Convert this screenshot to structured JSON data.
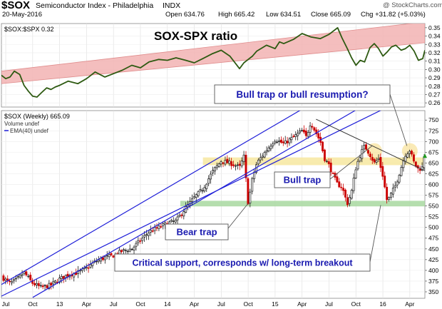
{
  "header": {
    "symbol": "$SOX",
    "name": "Semiconductor Index - Philadelphia",
    "exchange": "INDX",
    "date": "20-May-2016",
    "open": "Open 634.76",
    "high": "High 665.42",
    "low": "Low 634.51",
    "close": "Close 665.09",
    "change": "Chg +31.82 (+5.03%)",
    "watermark": "@ StockCharts.com"
  },
  "colors": {
    "price": "#000000",
    "up_bar": "#1a1a1a",
    "down_bar": "#cc0000",
    "ratio_line": "#2e5a12",
    "channel_fill": "#f2b3b3",
    "blue_line": "#1f1fd8",
    "yellow_zone": "#f7e7a0",
    "green_zone": "#a8d8a0",
    "trend_line": "#333333",
    "circle": "#f5d97a",
    "annotation_text": "#1a1ab0",
    "up_marker": "#1e9a1e"
  },
  "chart_data": [
    {
      "type": "line",
      "legend": "$SOX:$SPX 0.32",
      "title": "SOX-SPX ratio",
      "ylim": [
        0.255,
        0.355
      ],
      "yticks": [
        "0.35",
        "0.34",
        "0.33",
        "0.32",
        "0.31",
        "0.30",
        "0.29",
        "0.28",
        "0.27",
        "0.26"
      ],
      "xlim": [
        2012.46,
        2016.39
      ],
      "x": [
        2012.46,
        2012.5,
        2012.54,
        2012.58,
        2012.63,
        2012.67,
        2012.71,
        2012.75,
        2012.79,
        2012.83,
        2012.88,
        2012.92,
        2012.96,
        2013.0,
        2013.08,
        2013.17,
        2013.25,
        2013.33,
        2013.42,
        2013.5,
        2013.58,
        2013.67,
        2013.75,
        2013.83,
        2013.92,
        2014.0,
        2014.08,
        2014.17,
        2014.25,
        2014.33,
        2014.42,
        2014.5,
        2014.58,
        2014.67,
        2014.71,
        2014.75,
        2014.79,
        2014.83,
        2014.92,
        2015.0,
        2015.04,
        2015.08,
        2015.17,
        2015.25,
        2015.33,
        2015.42,
        2015.5,
        2015.58,
        2015.62,
        2015.67,
        2015.71,
        2015.75,
        2015.79,
        2015.83,
        2015.88,
        2015.92,
        2015.96,
        2016.0,
        2016.04,
        2016.08,
        2016.12,
        2016.17,
        2016.21,
        2016.25,
        2016.29,
        2016.33,
        2016.37,
        2016.39
      ],
      "values": [
        0.293,
        0.289,
        0.291,
        0.298,
        0.294,
        0.281,
        0.274,
        0.268,
        0.267,
        0.272,
        0.278,
        0.276,
        0.279,
        0.281,
        0.286,
        0.283,
        0.289,
        0.297,
        0.291,
        0.295,
        0.299,
        0.305,
        0.302,
        0.309,
        0.312,
        0.311,
        0.314,
        0.311,
        0.308,
        0.313,
        0.319,
        0.323,
        0.316,
        0.301,
        0.308,
        0.312,
        0.316,
        0.322,
        0.329,
        0.325,
        0.333,
        0.331,
        0.336,
        0.343,
        0.339,
        0.337,
        0.342,
        0.35,
        0.338,
        0.325,
        0.314,
        0.305,
        0.311,
        0.309,
        0.326,
        0.331,
        0.325,
        0.316,
        0.321,
        0.327,
        0.329,
        0.323,
        0.325,
        0.329,
        0.322,
        0.311,
        0.313,
        0.323
      ],
      "channel": {
        "lower": [
          [
            2012.46,
            0.283
          ],
          [
            2016.39,
            0.332
          ]
        ],
        "upper": [
          [
            2012.46,
            0.298
          ],
          [
            2016.39,
            0.357
          ]
        ]
      }
    },
    {
      "type": "candlestick",
      "legend": [
        "$SOX (Weekly) 665.09",
        "Volume undef",
        "EMA(40) undef"
      ],
      "ylim": [
        335,
        772
      ],
      "yticks": [
        "750",
        "725",
        "700",
        "675",
        "650",
        "625",
        "600",
        "575",
        "550",
        "525",
        "500",
        "475",
        "450",
        "425",
        "400",
        "375",
        "350"
      ],
      "xlim": [
        2012.46,
        2016.39
      ],
      "xticks": [
        {
          "x": 2012.5,
          "label": "Jul"
        },
        {
          "x": 2012.75,
          "label": "Oct"
        },
        {
          "x": 2013.0,
          "label": "13"
        },
        {
          "x": 2013.25,
          "label": "Apr"
        },
        {
          "x": 2013.5,
          "label": "Jul"
        },
        {
          "x": 2013.75,
          "label": "Oct"
        },
        {
          "x": 2014.0,
          "label": "14"
        },
        {
          "x": 2014.25,
          "label": "Apr"
        },
        {
          "x": 2014.5,
          "label": "Jul"
        },
        {
          "x": 2014.75,
          "label": "Oct"
        },
        {
          "x": 2015.0,
          "label": "15"
        },
        {
          "x": 2015.25,
          "label": "Apr"
        },
        {
          "x": 2015.5,
          "label": "Jul"
        },
        {
          "x": 2015.75,
          "label": "Oct"
        },
        {
          "x": 2016.0,
          "label": "16"
        },
        {
          "x": 2016.25,
          "label": "Apr"
        }
      ],
      "anchors": [
        [
          2012.46,
          385
        ],
        [
          2012.54,
          370
        ],
        [
          2012.6,
          378
        ],
        [
          2012.67,
          395
        ],
        [
          2012.75,
          370
        ],
        [
          2012.83,
          360
        ],
        [
          2012.92,
          366
        ],
        [
          2013.0,
          380
        ],
        [
          2013.08,
          390
        ],
        [
          2013.17,
          395
        ],
        [
          2013.25,
          405
        ],
        [
          2013.33,
          420
        ],
        [
          2013.42,
          430
        ],
        [
          2013.5,
          435
        ],
        [
          2013.58,
          445
        ],
        [
          2013.67,
          450
        ],
        [
          2013.75,
          470
        ],
        [
          2013.83,
          490
        ],
        [
          2013.92,
          500
        ],
        [
          2014.0,
          510
        ],
        [
          2014.08,
          515
        ],
        [
          2014.17,
          545
        ],
        [
          2014.25,
          570
        ],
        [
          2014.33,
          590
        ],
        [
          2014.42,
          630
        ],
        [
          2014.5,
          655
        ],
        [
          2014.58,
          650
        ],
        [
          2014.67,
          640
        ],
        [
          2014.71,
          665
        ],
        [
          2014.75,
          555
        ],
        [
          2014.79,
          615
        ],
        [
          2014.83,
          650
        ],
        [
          2014.92,
          680
        ],
        [
          2015.0,
          705
        ],
        [
          2015.08,
          695
        ],
        [
          2015.17,
          710
        ],
        [
          2015.25,
          725
        ],
        [
          2015.29,
          710
        ],
        [
          2015.33,
          745
        ],
        [
          2015.38,
          720
        ],
        [
          2015.42,
          700
        ],
        [
          2015.46,
          660
        ],
        [
          2015.5,
          645
        ],
        [
          2015.54,
          620
        ],
        [
          2015.58,
          600
        ],
        [
          2015.62,
          595
        ],
        [
          2015.67,
          555
        ],
        [
          2015.71,
          585
        ],
        [
          2015.75,
          640
        ],
        [
          2015.79,
          670
        ],
        [
          2015.83,
          690
        ],
        [
          2015.88,
          670
        ],
        [
          2015.92,
          650
        ],
        [
          2015.96,
          660
        ],
        [
          2016.0,
          620
        ],
        [
          2016.04,
          560
        ],
        [
          2016.08,
          580
        ],
        [
          2016.12,
          600
        ],
        [
          2016.17,
          640
        ],
        [
          2016.21,
          670
        ],
        [
          2016.25,
          680
        ],
        [
          2016.29,
          650
        ],
        [
          2016.33,
          635
        ],
        [
          2016.37,
          640
        ],
        [
          2016.39,
          665
        ]
      ],
      "last_close": 665.09,
      "annotations": {
        "bull_trap_question": "Bull trap or bull resumption?",
        "bull_trap": "Bull trap",
        "bear_trap": "Bear trap",
        "critical_support": "Critical support, corresponds w/ long-term breakout"
      },
      "resistance_zone": [
        645,
        663
      ],
      "support_zone": [
        549,
        562
      ],
      "upper_channel_lines": [
        {
          "from": [
            2012.46,
            367
          ],
          "to": [
            2015.33,
            787
          ]
        },
        {
          "from": [
            2012.75,
            337
          ],
          "to": [
            2015.83,
            785
          ]
        }
      ],
      "lower_channel_line": {
        "from": [
          2012.46,
          340
        ],
        "to": [
          2016.0,
          775
        ]
      },
      "downtrend_line": {
        "from": [
          2015.38,
          752
        ],
        "to": [
          2016.39,
          632
        ]
      }
    }
  ]
}
